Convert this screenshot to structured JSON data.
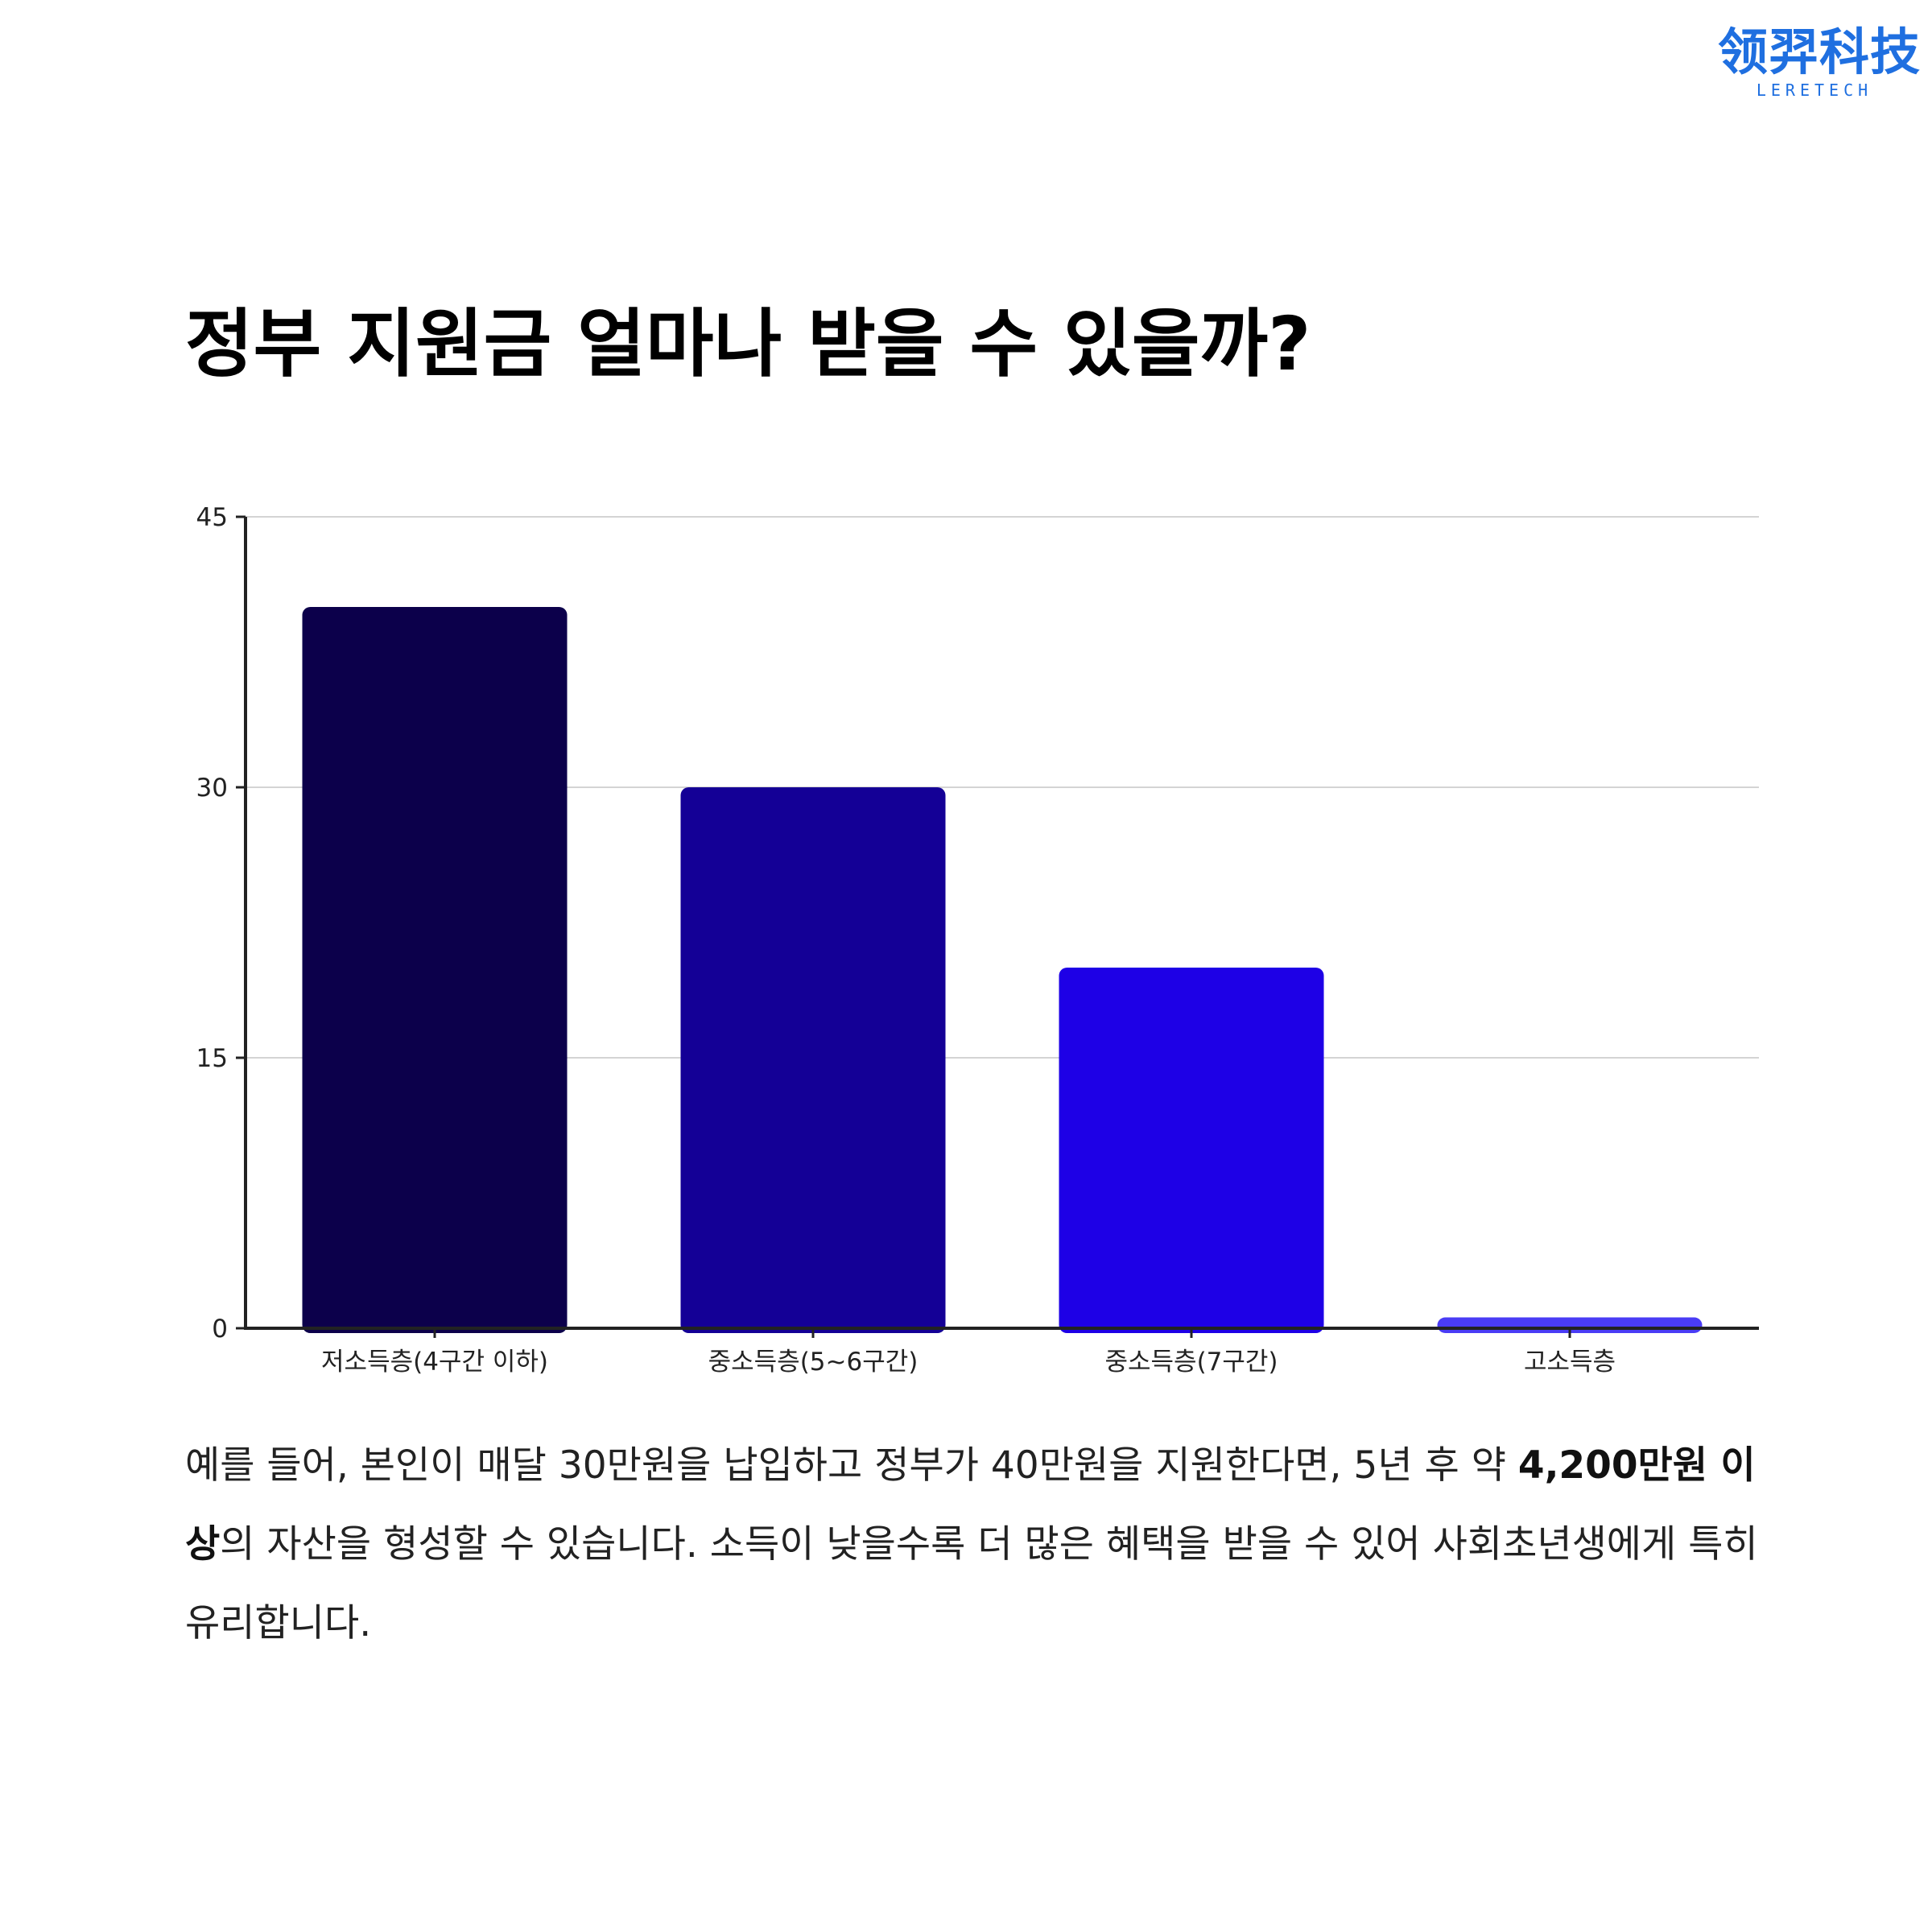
{
  "logo": {
    "cn": "领羿科技",
    "en": "LERETECH"
  },
  "title": "정부 지원금 얼마나 받을 수 있을까?",
  "chart_data": {
    "type": "bar",
    "categories": [
      "저소득층(4구간 이하)",
      "중소득층(5~6구간)",
      "중소득층(7구간)",
      "고소득층"
    ],
    "values": [
      40,
      30,
      20,
      0.6
    ],
    "bar_colors": [
      "#0c004b",
      "#140096",
      "#1e00e6",
      "#4a3cf5"
    ],
    "ylim": [
      0,
      45
    ],
    "yticks": [
      0,
      15,
      30,
      45
    ],
    "grid": true,
    "title": "",
    "xlabel": "",
    "ylabel": ""
  },
  "description": {
    "part1": "예를 들어, 본인이 매달 30만원을 납입하고 정부가 40만원을 지원한다면, 5년 후 약 ",
    "highlight": "4,200만원 이상",
    "part2": "의 자산을 형성할 수 있습니다. 소득이 낮을수록 더 많은 혜택을 받을 수 있어 사회초년생에게 특히 유리합니다."
  }
}
